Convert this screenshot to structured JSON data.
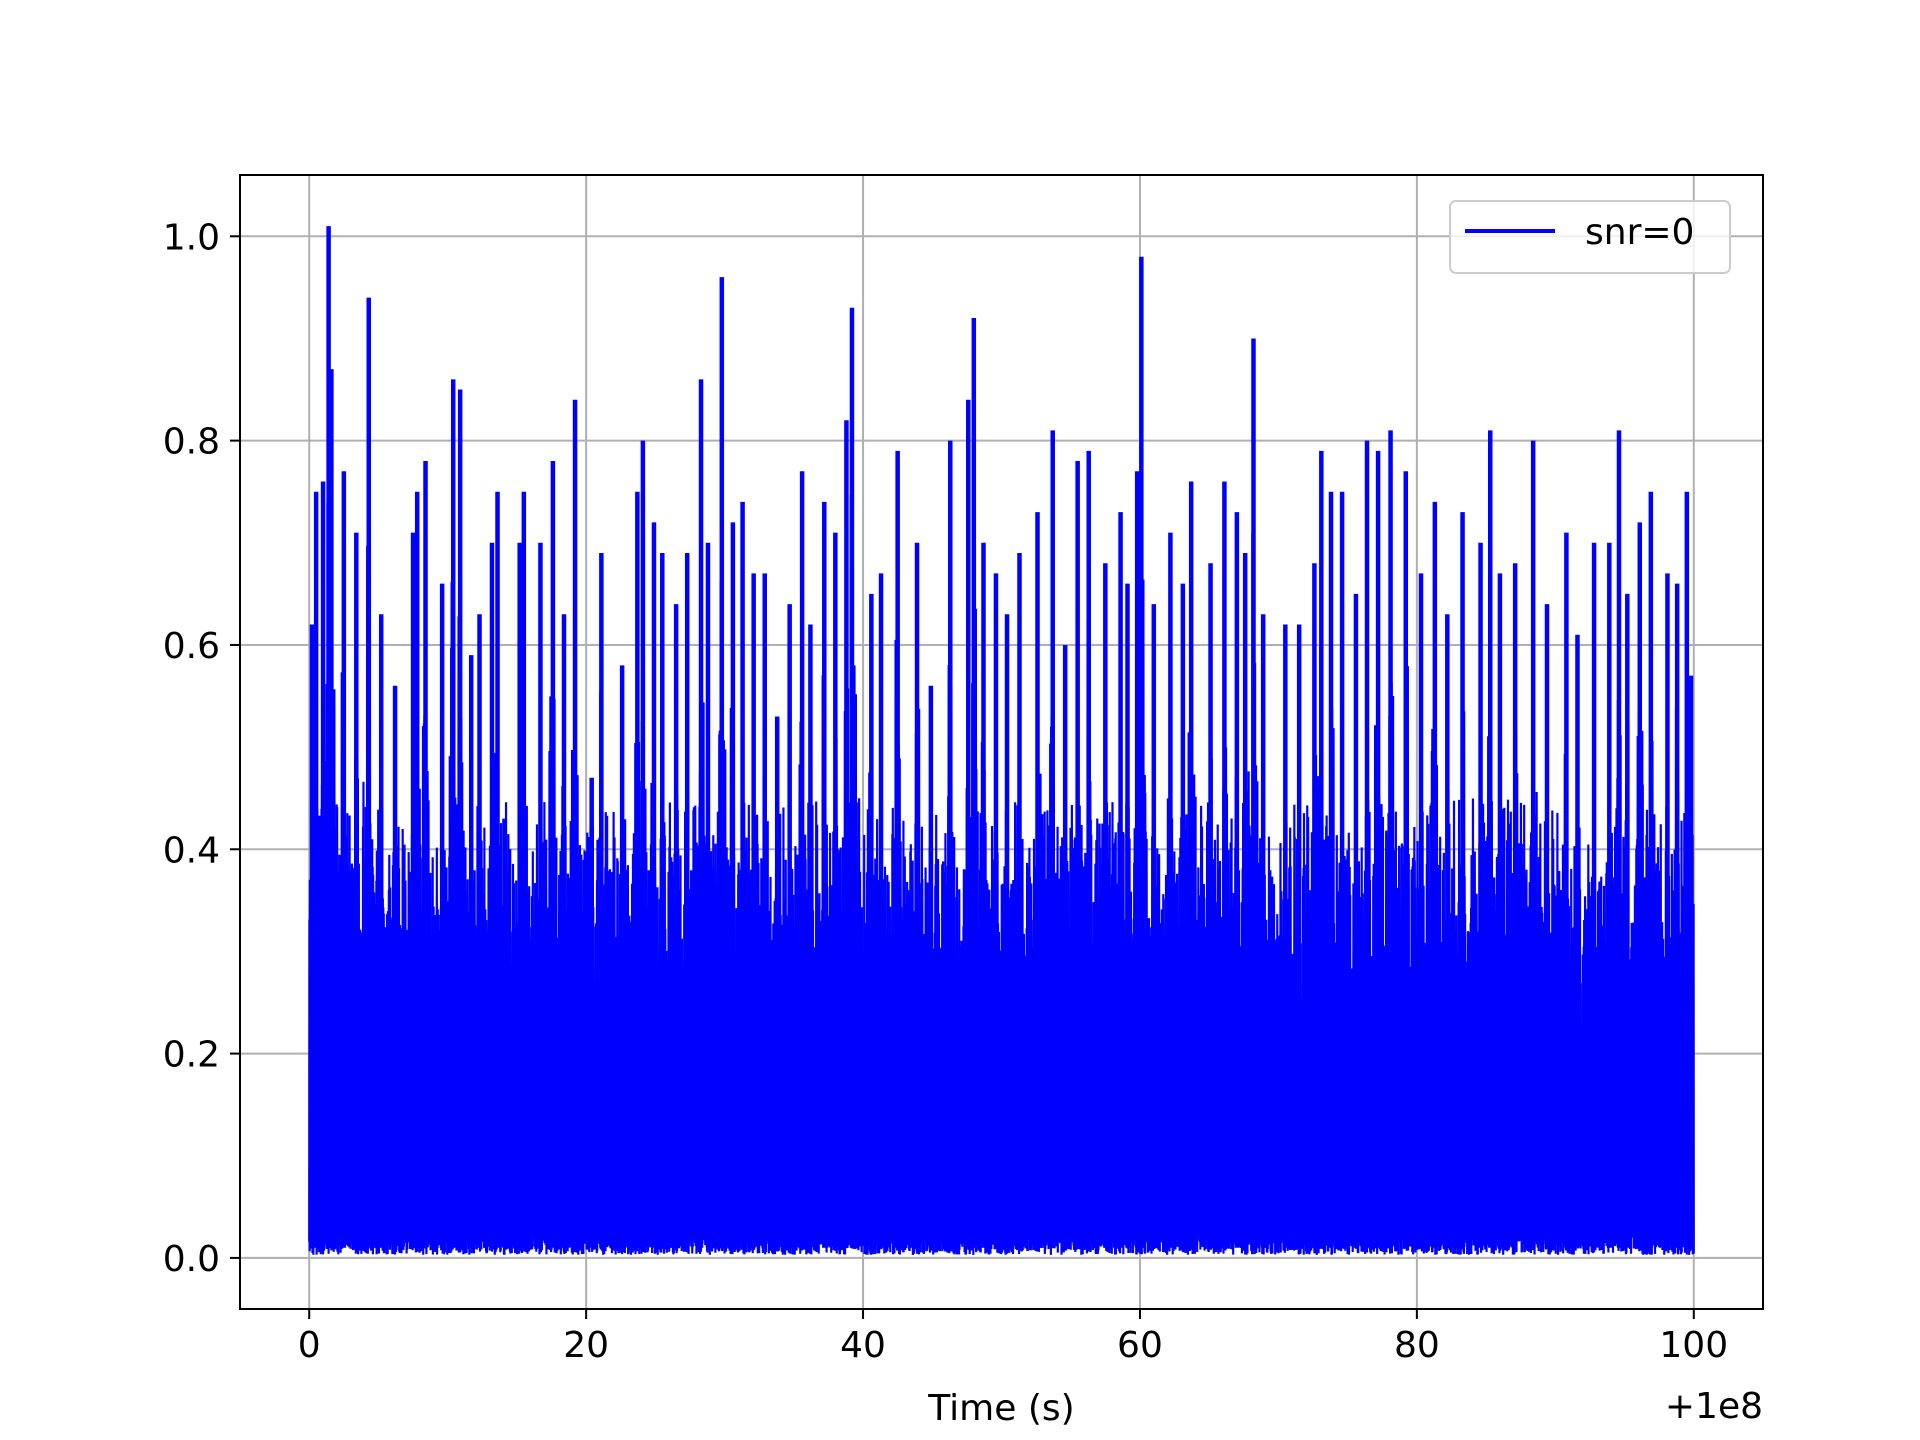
{
  "chart_data": {
    "type": "line",
    "title": "",
    "xlabel": "Time (s)",
    "ylabel": "",
    "x_offset_label": "+1e8",
    "xlim": [
      -5,
      105
    ],
    "ylim": [
      -0.05,
      1.06
    ],
    "x_ticks": [
      0,
      20,
      40,
      60,
      80,
      100
    ],
    "x_tick_labels": [
      "0",
      "20",
      "40",
      "60",
      "80",
      "100"
    ],
    "y_ticks": [
      0.0,
      0.2,
      0.4,
      0.6,
      0.8,
      1.0
    ],
    "y_tick_labels": [
      "0.0",
      "0.2",
      "0.4",
      "0.6",
      "0.8",
      "1.0"
    ],
    "grid": true,
    "legend_position": "top-right",
    "series": [
      {
        "name": "snr=0",
        "color": "#0000ff",
        "x_range": [
          0,
          100
        ],
        "peaks": [
          [
            0.2,
            0.62
          ],
          [
            0.5,
            0.75
          ],
          [
            1.0,
            0.76
          ],
          [
            1.4,
            1.01
          ],
          [
            1.6,
            0.87
          ],
          [
            2.5,
            0.77
          ],
          [
            3.4,
            0.71
          ],
          [
            4.3,
            0.94
          ],
          [
            5.2,
            0.63
          ],
          [
            6.2,
            0.56
          ],
          [
            7.5,
            0.71
          ],
          [
            7.8,
            0.75
          ],
          [
            8.4,
            0.78
          ],
          [
            9.6,
            0.66
          ],
          [
            10.4,
            0.86
          ],
          [
            10.9,
            0.85
          ],
          [
            11.7,
            0.59
          ],
          [
            12.3,
            0.63
          ],
          [
            13.2,
            0.7
          ],
          [
            13.6,
            0.75
          ],
          [
            14.1,
            0.43
          ],
          [
            15.2,
            0.7
          ],
          [
            15.5,
            0.75
          ],
          [
            16.7,
            0.7
          ],
          [
            17.6,
            0.78
          ],
          [
            18.4,
            0.63
          ],
          [
            19.2,
            0.84
          ],
          [
            20.4,
            0.47
          ],
          [
            21.1,
            0.69
          ],
          [
            22.6,
            0.58
          ],
          [
            23.7,
            0.75
          ],
          [
            24.1,
            0.8
          ],
          [
            24.9,
            0.72
          ],
          [
            25.5,
            0.69
          ],
          [
            26.5,
            0.64
          ],
          [
            27.3,
            0.69
          ],
          [
            28.3,
            0.86
          ],
          [
            28.8,
            0.7
          ],
          [
            29.8,
            0.96
          ],
          [
            30.6,
            0.72
          ],
          [
            31.3,
            0.74
          ],
          [
            32.1,
            0.67
          ],
          [
            32.9,
            0.67
          ],
          [
            33.8,
            0.53
          ],
          [
            34.7,
            0.64
          ],
          [
            35.6,
            0.77
          ],
          [
            36.2,
            0.62
          ],
          [
            37.2,
            0.74
          ],
          [
            38.0,
            0.71
          ],
          [
            38.8,
            0.82
          ],
          [
            39.2,
            0.93
          ],
          [
            40.6,
            0.65
          ],
          [
            41.3,
            0.67
          ],
          [
            42.5,
            0.79
          ],
          [
            43.9,
            0.7
          ],
          [
            44.9,
            0.56
          ],
          [
            46.3,
            0.8
          ],
          [
            47.6,
            0.84
          ],
          [
            48.0,
            0.92
          ],
          [
            48.7,
            0.7
          ],
          [
            49.6,
            0.67
          ],
          [
            50.4,
            0.63
          ],
          [
            51.3,
            0.69
          ],
          [
            52.6,
            0.73
          ],
          [
            53.7,
            0.81
          ],
          [
            54.6,
            0.6
          ],
          [
            55.5,
            0.78
          ],
          [
            56.3,
            0.79
          ],
          [
            57.5,
            0.68
          ],
          [
            58.6,
            0.73
          ],
          [
            59.1,
            0.66
          ],
          [
            59.8,
            0.77
          ],
          [
            60.1,
            0.98
          ],
          [
            61.0,
            0.64
          ],
          [
            62.2,
            0.71
          ],
          [
            63.1,
            0.66
          ],
          [
            63.7,
            0.76
          ],
          [
            65.1,
            0.68
          ],
          [
            66.1,
            0.76
          ],
          [
            67.0,
            0.73
          ],
          [
            67.6,
            0.69
          ],
          [
            68.2,
            0.9
          ],
          [
            68.9,
            0.63
          ],
          [
            70.5,
            0.62
          ],
          [
            71.5,
            0.62
          ],
          [
            72.6,
            0.68
          ],
          [
            73.1,
            0.79
          ],
          [
            73.8,
            0.75
          ],
          [
            74.6,
            0.75
          ],
          [
            75.6,
            0.65
          ],
          [
            76.4,
            0.8
          ],
          [
            77.2,
            0.79
          ],
          [
            78.1,
            0.81
          ],
          [
            79.2,
            0.77
          ],
          [
            80.3,
            0.67
          ],
          [
            81.3,
            0.74
          ],
          [
            82.2,
            0.63
          ],
          [
            83.3,
            0.73
          ],
          [
            84.6,
            0.7
          ],
          [
            85.3,
            0.81
          ],
          [
            86.0,
            0.67
          ],
          [
            87.1,
            0.68
          ],
          [
            88.4,
            0.8
          ],
          [
            89.4,
            0.64
          ],
          [
            90.8,
            0.71
          ],
          [
            91.6,
            0.61
          ],
          [
            92.8,
            0.7
          ],
          [
            93.9,
            0.7
          ],
          [
            94.6,
            0.81
          ],
          [
            95.2,
            0.65
          ],
          [
            96.1,
            0.72
          ],
          [
            96.9,
            0.75
          ],
          [
            98.1,
            0.67
          ],
          [
            98.8,
            0.66
          ],
          [
            99.5,
            0.75
          ],
          [
            99.8,
            0.57
          ]
        ]
      }
    ]
  }
}
